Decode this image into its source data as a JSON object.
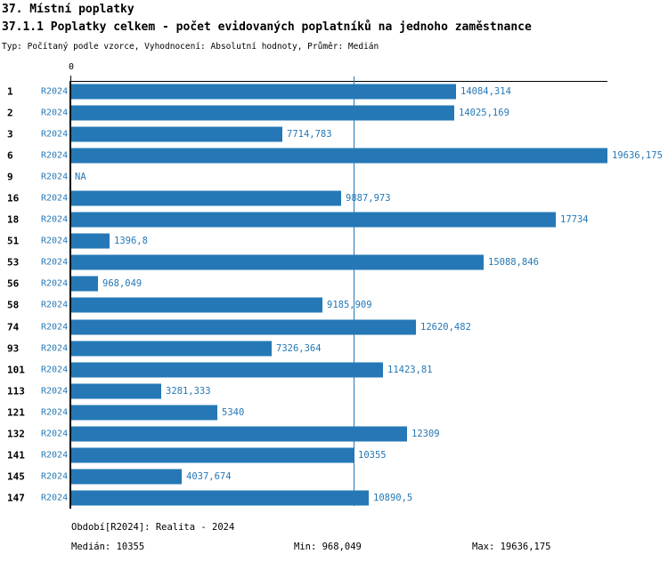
{
  "header": {
    "title": "37. Místní poplatky",
    "subtitle": "37.1.1 Poplatky celkem - počet evidovaných poplatníků na jednoho zaměstnance",
    "meta": "Typ: Počítaný podle vzorce, Vyhodnocení: Absolutní hodnoty, Průměr: Medián"
  },
  "chart_data": {
    "type": "bar",
    "orientation": "horizontal",
    "title": "37.1.1 Poplatky celkem - počet evidovaných poplatníků na jednoho zaměstnance",
    "period_label": "R2024",
    "axis": {
      "min": 0,
      "max": 19636.175,
      "zero_tick_label": "0"
    },
    "median_value": 10355,
    "grid": false,
    "legend": false,
    "colors": {
      "bar": "#2578b5",
      "value_text": "#2578b5",
      "row_number_text": "#000000",
      "median_line": "#2578b5",
      "axis": "#000000"
    },
    "rows": [
      {
        "id": "1",
        "value": 14084.314,
        "label": "14084,314"
      },
      {
        "id": "2",
        "value": 14025.169,
        "label": "14025,169"
      },
      {
        "id": "3",
        "value": 7714.783,
        "label": "7714,783"
      },
      {
        "id": "6",
        "value": 19636.175,
        "label": "19636,175"
      },
      {
        "id": "9",
        "value": null,
        "label": "NA"
      },
      {
        "id": "16",
        "value": 9887.973,
        "label": "9887,973"
      },
      {
        "id": "18",
        "value": 17734,
        "label": "17734"
      },
      {
        "id": "51",
        "value": 1396.8,
        "label": "1396,8"
      },
      {
        "id": "53",
        "value": 15088.846,
        "label": "15088,846"
      },
      {
        "id": "56",
        "value": 968.049,
        "label": "968,049"
      },
      {
        "id": "58",
        "value": 9185.909,
        "label": "9185,909"
      },
      {
        "id": "74",
        "value": 12620.482,
        "label": "12620,482"
      },
      {
        "id": "93",
        "value": 7326.364,
        "label": "7326,364"
      },
      {
        "id": "101",
        "value": 11423.81,
        "label": "11423,81"
      },
      {
        "id": "113",
        "value": 3281.333,
        "label": "3281,333"
      },
      {
        "id": "121",
        "value": 5340,
        "label": "5340"
      },
      {
        "id": "132",
        "value": 12309,
        "label": "12309"
      },
      {
        "id": "141",
        "value": 10355,
        "label": "10355"
      },
      {
        "id": "145",
        "value": 4037.674,
        "label": "4037,674"
      },
      {
        "id": "147",
        "value": 10890.5,
        "label": "10890,5"
      }
    ]
  },
  "footer": {
    "period_info": "Období[R2024]: Realita - 2024",
    "median": "Medián: 10355",
    "min": "Min: 968,049",
    "max": "Max: 19636,175"
  }
}
